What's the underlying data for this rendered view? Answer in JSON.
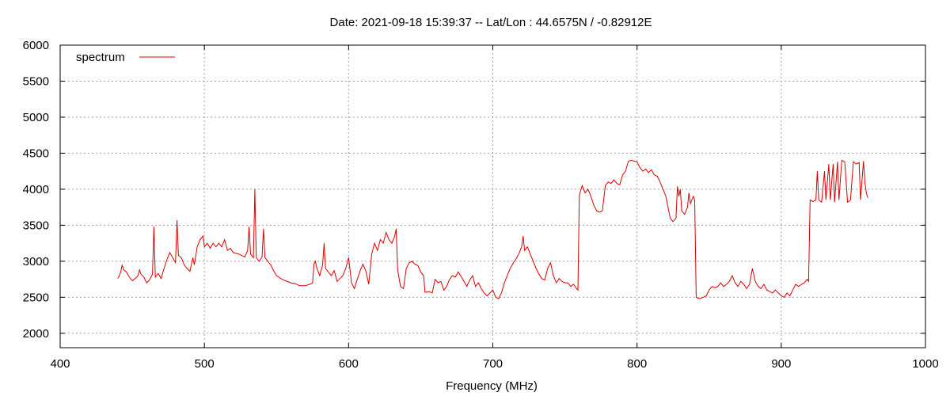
{
  "chart_data": {
    "type": "line",
    "title": "Date: 2021-09-18 15:39:37  --  Lat/Lon : 44.6575N / -0.82912E",
    "xlabel": "Frequency (MHz)",
    "ylabel": "",
    "xlim": [
      400,
      1000
    ],
    "ylim": [
      1800,
      6000
    ],
    "xticks": [
      400,
      500,
      600,
      700,
      800,
      900,
      1000
    ],
    "yticks": [
      2000,
      2500,
      3000,
      3500,
      4000,
      4500,
      5000,
      5500,
      6000
    ],
    "grid": true,
    "legend_position": "top-left",
    "series": [
      {
        "name": "spectrum",
        "color": "#dd0000",
        "points": [
          [
            440,
            2760
          ],
          [
            441,
            2800
          ],
          [
            442,
            2850
          ],
          [
            443,
            2950
          ],
          [
            444,
            2880
          ],
          [
            446,
            2850
          ],
          [
            448,
            2780
          ],
          [
            450,
            2730
          ],
          [
            452,
            2760
          ],
          [
            454,
            2800
          ],
          [
            455,
            2880
          ],
          [
            456,
            2820
          ],
          [
            458,
            2780
          ],
          [
            460,
            2700
          ],
          [
            462,
            2740
          ],
          [
            464,
            2820
          ],
          [
            465,
            3480
          ],
          [
            466,
            2780
          ],
          [
            468,
            2830
          ],
          [
            470,
            2760
          ],
          [
            472,
            2900
          ],
          [
            474,
            3020
          ],
          [
            476,
            3120
          ],
          [
            478,
            3050
          ],
          [
            480,
            2980
          ],
          [
            481,
            3570
          ],
          [
            482,
            3080
          ],
          [
            484,
            3050
          ],
          [
            486,
            2950
          ],
          [
            488,
            2900
          ],
          [
            490,
            2860
          ],
          [
            492,
            3050
          ],
          [
            493,
            2950
          ],
          [
            495,
            3200
          ],
          [
            497,
            3300
          ],
          [
            499,
            3350
          ],
          [
            500,
            3200
          ],
          [
            502,
            3250
          ],
          [
            504,
            3180
          ],
          [
            506,
            3250
          ],
          [
            508,
            3200
          ],
          [
            510,
            3250
          ],
          [
            512,
            3200
          ],
          [
            514,
            3300
          ],
          [
            516,
            3150
          ],
          [
            518,
            3180
          ],
          [
            520,
            3120
          ],
          [
            524,
            3100
          ],
          [
            528,
            3060
          ],
          [
            530,
            3150
          ],
          [
            531,
            3480
          ],
          [
            532,
            3100
          ],
          [
            534,
            3050
          ],
          [
            535,
            4000
          ],
          [
            536,
            3050
          ],
          [
            538,
            3000
          ],
          [
            540,
            3060
          ],
          [
            541,
            3450
          ],
          [
            542,
            3050
          ],
          [
            544,
            3000
          ],
          [
            546,
            2950
          ],
          [
            548,
            2870
          ],
          [
            550,
            2800
          ],
          [
            553,
            2760
          ],
          [
            556,
            2730
          ],
          [
            560,
            2700
          ],
          [
            563,
            2690
          ],
          [
            566,
            2660
          ],
          [
            570,
            2660
          ],
          [
            573,
            2680
          ],
          [
            575,
            2700
          ],
          [
            576,
            2960
          ],
          [
            577,
            3000
          ],
          [
            578,
            2900
          ],
          [
            580,
            2800
          ],
          [
            582,
            2950
          ],
          [
            583,
            3250
          ],
          [
            584,
            2900
          ],
          [
            586,
            2850
          ],
          [
            588,
            2800
          ],
          [
            590,
            2870
          ],
          [
            592,
            2720
          ],
          [
            594,
            2760
          ],
          [
            596,
            2800
          ],
          [
            598,
            2900
          ],
          [
            600,
            3050
          ],
          [
            602,
            2700
          ],
          [
            604,
            2620
          ],
          [
            606,
            2750
          ],
          [
            608,
            2870
          ],
          [
            610,
            2960
          ],
          [
            612,
            2860
          ],
          [
            614,
            2680
          ],
          [
            616,
            3100
          ],
          [
            618,
            3250
          ],
          [
            620,
            3150
          ],
          [
            622,
            3300
          ],
          [
            624,
            3250
          ],
          [
            626,
            3400
          ],
          [
            628,
            3300
          ],
          [
            630,
            3250
          ],
          [
            632,
            3350
          ],
          [
            633,
            3450
          ],
          [
            634,
            2880
          ],
          [
            636,
            2650
          ],
          [
            638,
            2620
          ],
          [
            640,
            2900
          ],
          [
            642,
            2980
          ],
          [
            644,
            3000
          ],
          [
            646,
            2960
          ],
          [
            648,
            2940
          ],
          [
            650,
            2850
          ],
          [
            652,
            2800
          ],
          [
            653,
            2570
          ],
          [
            656,
            2580
          ],
          [
            658,
            2560
          ],
          [
            660,
            2750
          ],
          [
            662,
            2700
          ],
          [
            664,
            2720
          ],
          [
            666,
            2600
          ],
          [
            668,
            2650
          ],
          [
            670,
            2750
          ],
          [
            672,
            2800
          ],
          [
            674,
            2780
          ],
          [
            676,
            2850
          ],
          [
            678,
            2790
          ],
          [
            680,
            2720
          ],
          [
            682,
            2650
          ],
          [
            684,
            2740
          ],
          [
            686,
            2800
          ],
          [
            688,
            2650
          ],
          [
            690,
            2700
          ],
          [
            692,
            2620
          ],
          [
            694,
            2560
          ],
          [
            696,
            2520
          ],
          [
            698,
            2560
          ],
          [
            700,
            2600
          ],
          [
            702,
            2500
          ],
          [
            704,
            2480
          ],
          [
            706,
            2560
          ],
          [
            708,
            2700
          ],
          [
            710,
            2800
          ],
          [
            712,
            2900
          ],
          [
            714,
            2970
          ],
          [
            716,
            3030
          ],
          [
            718,
            3100
          ],
          [
            720,
            3200
          ],
          [
            721,
            3350
          ],
          [
            722,
            3150
          ],
          [
            724,
            3200
          ],
          [
            726,
            3100
          ],
          [
            728,
            3000
          ],
          [
            730,
            2900
          ],
          [
            732,
            2820
          ],
          [
            734,
            2760
          ],
          [
            736,
            2740
          ],
          [
            738,
            2900
          ],
          [
            740,
            2980
          ],
          [
            742,
            2800
          ],
          [
            744,
            2700
          ],
          [
            746,
            2760
          ],
          [
            748,
            2720
          ],
          [
            750,
            2700
          ],
          [
            752,
            2700
          ],
          [
            754,
            2650
          ],
          [
            756,
            2680
          ],
          [
            758,
            2620
          ],
          [
            759,
            2600
          ],
          [
            760,
            3920
          ],
          [
            762,
            4050
          ],
          [
            764,
            3950
          ],
          [
            766,
            4000
          ],
          [
            768,
            3900
          ],
          [
            770,
            3780
          ],
          [
            772,
            3700
          ],
          [
            774,
            3680
          ],
          [
            776,
            3700
          ],
          [
            778,
            4050
          ],
          [
            780,
            4100
          ],
          [
            782,
            4080
          ],
          [
            784,
            4130
          ],
          [
            786,
            4080
          ],
          [
            788,
            4060
          ],
          [
            790,
            4200
          ],
          [
            792,
            4250
          ],
          [
            794,
            4390
          ],
          [
            796,
            4400
          ],
          [
            798,
            4390
          ],
          [
            800,
            4380
          ],
          [
            802,
            4300
          ],
          [
            804,
            4250
          ],
          [
            806,
            4280
          ],
          [
            808,
            4230
          ],
          [
            810,
            4270
          ],
          [
            812,
            4200
          ],
          [
            814,
            4180
          ],
          [
            816,
            4100
          ],
          [
            818,
            4000
          ],
          [
            820,
            3900
          ],
          [
            822,
            3700
          ],
          [
            823,
            3600
          ],
          [
            825,
            3550
          ],
          [
            827,
            3600
          ],
          [
            828,
            4040
          ],
          [
            829,
            3900
          ],
          [
            830,
            4000
          ],
          [
            831,
            3700
          ],
          [
            833,
            3650
          ],
          [
            835,
            3750
          ],
          [
            836,
            3950
          ],
          [
            837,
            3800
          ],
          [
            839,
            3900
          ],
          [
            840,
            3850
          ],
          [
            841,
            2500
          ],
          [
            843,
            2480
          ],
          [
            846,
            2500
          ],
          [
            848,
            2520
          ],
          [
            850,
            2600
          ],
          [
            852,
            2650
          ],
          [
            854,
            2630
          ],
          [
            856,
            2650
          ],
          [
            858,
            2700
          ],
          [
            860,
            2650
          ],
          [
            862,
            2680
          ],
          [
            864,
            2720
          ],
          [
            866,
            2800
          ],
          [
            868,
            2700
          ],
          [
            870,
            2650
          ],
          [
            872,
            2720
          ],
          [
            874,
            2680
          ],
          [
            876,
            2620
          ],
          [
            878,
            2680
          ],
          [
            880,
            2900
          ],
          [
            882,
            2720
          ],
          [
            884,
            2650
          ],
          [
            886,
            2620
          ],
          [
            888,
            2680
          ],
          [
            890,
            2600
          ],
          [
            892,
            2580
          ],
          [
            894,
            2560
          ],
          [
            896,
            2600
          ],
          [
            898,
            2560
          ],
          [
            900,
            2520
          ],
          [
            902,
            2500
          ],
          [
            904,
            2560
          ],
          [
            906,
            2520
          ],
          [
            908,
            2600
          ],
          [
            910,
            2680
          ],
          [
            912,
            2650
          ],
          [
            914,
            2680
          ],
          [
            916,
            2700
          ],
          [
            918,
            2750
          ],
          [
            919,
            2720
          ],
          [
            920,
            3850
          ],
          [
            922,
            3830
          ],
          [
            924,
            3850
          ],
          [
            925,
            4250
          ],
          [
            926,
            3850
          ],
          [
            928,
            3820
          ],
          [
            930,
            4250
          ],
          [
            931,
            3850
          ],
          [
            933,
            4350
          ],
          [
            934,
            3850
          ],
          [
            936,
            4350
          ],
          [
            937,
            3820
          ],
          [
            939,
            4380
          ],
          [
            940,
            3850
          ],
          [
            942,
            4400
          ],
          [
            944,
            4380
          ],
          [
            946,
            3820
          ],
          [
            948,
            3850
          ],
          [
            950,
            4380
          ],
          [
            952,
            4350
          ],
          [
            954,
            4370
          ],
          [
            955,
            3850
          ],
          [
            957,
            4390
          ],
          [
            958,
            4100
          ],
          [
            959,
            3950
          ],
          [
            960,
            3880
          ]
        ]
      }
    ]
  }
}
